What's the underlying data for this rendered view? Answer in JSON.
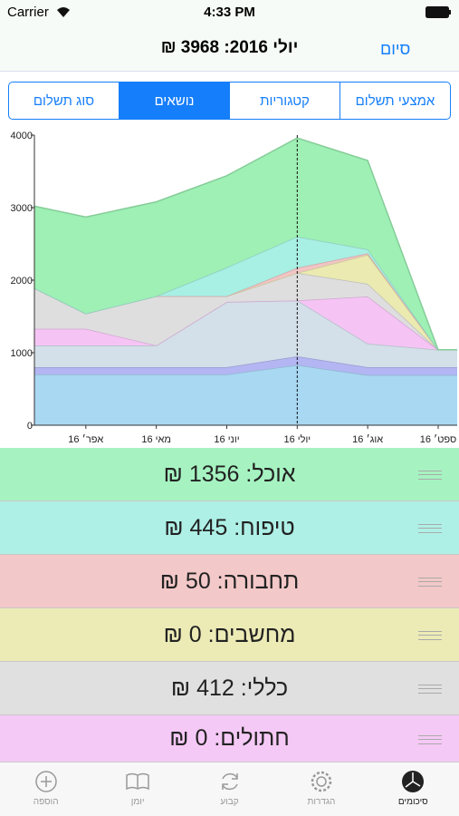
{
  "status_bar": {
    "carrier": "Carrier",
    "time": "4:33 PM"
  },
  "header": {
    "done": "סיום",
    "title": "יולי 2016: 3968 ₪"
  },
  "segments": {
    "items": [
      "אמצעי תשלום",
      "קטגוריות",
      "נושאים",
      "סוג תשלום"
    ],
    "selected": 2
  },
  "chart_data": {
    "type": "stacked_area",
    "x": [
      3.27,
      4,
      5,
      6,
      7,
      8,
      9,
      9.27
    ],
    "xlim": [
      3.27,
      9.27
    ],
    "xticks": [
      {
        "value": 4,
        "label": "אפר׳ 16"
      },
      {
        "value": 5,
        "label": "מאי 16"
      },
      {
        "value": 6,
        "label": "יוני 16"
      },
      {
        "value": 7,
        "label": "יולי 16"
      },
      {
        "value": 8,
        "label": "אוג׳ 16"
      },
      {
        "value": 9,
        "label": "ספט׳ 16"
      }
    ],
    "ylim": [
      0,
      4000
    ],
    "yticks": [
      0,
      1000,
      2000,
      3000,
      4000
    ],
    "selected_x": 7,
    "series": [
      {
        "color": "#a9d8f3",
        "values": [
          700,
          700,
          700,
          700,
          830,
          690,
          690,
          690
        ]
      },
      {
        "color": "#b3b6f2",
        "values": [
          100,
          100,
          100,
          100,
          120,
          110,
          110,
          110
        ]
      },
      {
        "color": "#d3dfe9",
        "values": [
          300,
          300,
          300,
          900,
          770,
          325,
          240,
          240
        ]
      },
      {
        "color": "#f5c4f5",
        "values": [
          230,
          230,
          0,
          0,
          0,
          650,
          0,
          0
        ]
      },
      {
        "color": "#dedede",
        "values": [
          560,
          210,
          680,
          80,
          380,
          175,
          0,
          0
        ]
      },
      {
        "color": "#ebeab0",
        "values": [
          0,
          0,
          0,
          0,
          0,
          400,
          0,
          0
        ]
      },
      {
        "color": "#f2c4c4",
        "values": [
          0,
          0,
          0,
          0,
          70,
          20,
          0,
          0
        ]
      },
      {
        "color": "#a8efe4",
        "values": [
          0,
          0,
          0,
          395,
          430,
          55,
          0,
          0
        ]
      },
      {
        "color": "#9ef0b4",
        "values": [
          1130,
          1330,
          1300,
          1265,
          1360,
          1225,
          0,
          0
        ]
      }
    ]
  },
  "rows": [
    {
      "text": "אוכל: 1356 ₪",
      "color": "#a6f3c1"
    },
    {
      "text": "טיפוח: 445 ₪",
      "color": "#aef0e6"
    },
    {
      "text": "תחבורה: 50 ₪",
      "color": "#f3c8c8"
    },
    {
      "text": "מחשבים: 0 ₪",
      "color": "#ecebb6"
    },
    {
      "text": "כללי: 412 ₪",
      "color": "#e0e0e0"
    },
    {
      "text": "חתולים: 0 ₪",
      "color": "#f5c9f5"
    }
  ],
  "tab_bar": {
    "items": [
      "הוספה",
      "יומן",
      "קבוע",
      "הגדרות",
      "סיכומים"
    ],
    "selected": 4
  }
}
